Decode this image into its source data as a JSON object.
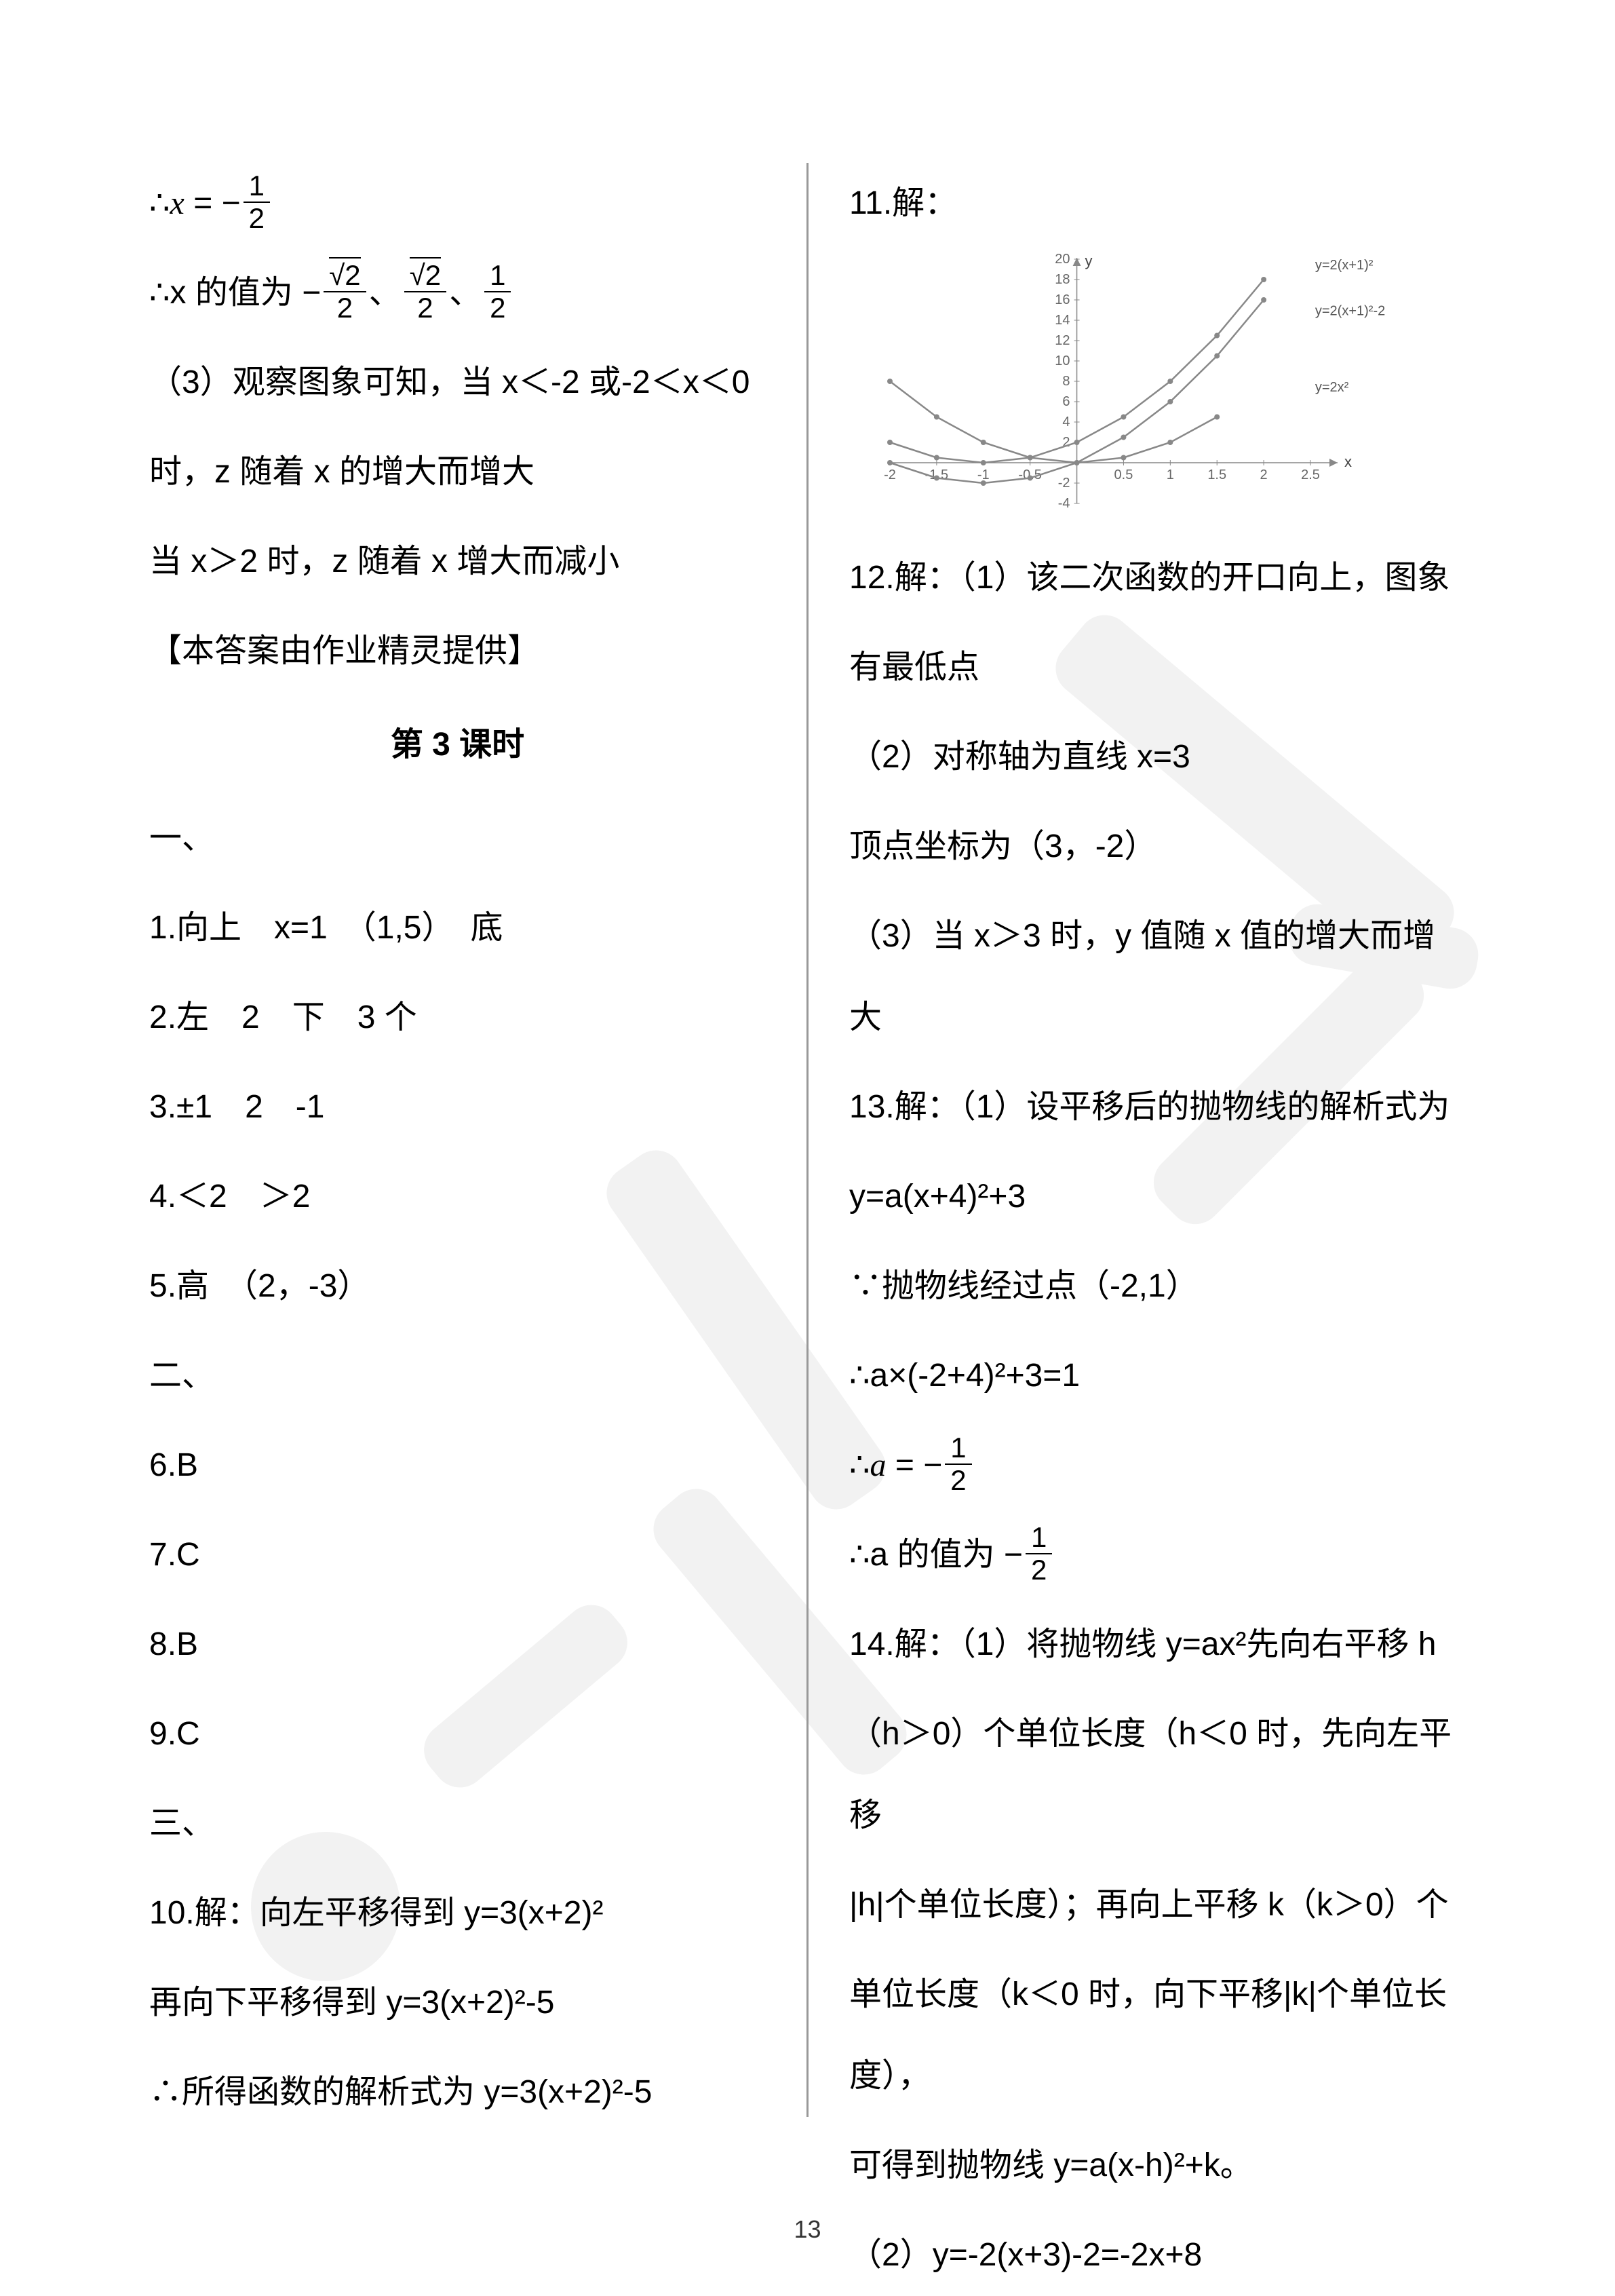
{
  "page_number": "13",
  "left": {
    "l1_pre": "∴",
    "l1_var": "x",
    "l1_eq": " = −",
    "l1_frac_n": "1",
    "l1_frac_d": "2",
    "l2_pre": "∴x 的值为 −",
    "l2_f1n": "√2",
    "l2_f1d": "2",
    "l2_sep1": "、",
    "l2_f2n": "√2",
    "l2_f2d": "2",
    "l2_sep2": "、",
    "l2_f3n": "1",
    "l2_f3d": "2",
    "l3": "（3）观察图象可知，当 x＜-2 或-2＜x＜0",
    "l4": "时，z 随着 x 的增大而增大",
    "l5": "当 x＞2 时，z 随着 x 增大而减小",
    "l6": "【本答案由作业精灵提供】",
    "h1": "第 3 课时",
    "s1": "一、",
    "a1": "1.向上　x=1　（1,5）　底",
    "a2": "2.左　2　下　3 个",
    "a3": "3.±1　2　-1",
    "a4": "4.＜2　＞2",
    "a5": "5.高　（2，-3）",
    "s2": "二、",
    "a6": "6.B",
    "a7": "7.C",
    "a8": "8.B",
    "a9": "9.C",
    "s3": "三、",
    "a10": "10.解：向左平移得到 y=3(x+2)²",
    "a10b": "再向下平移得到 y=3(x+2)²-5",
    "a10c": "∴所得函数的解析式为 y=3(x+2)²-5"
  },
  "right": {
    "r1": "11.解：",
    "chart": {
      "x_min": -2,
      "x_max": 2.5,
      "x_step": 0.5,
      "y_min": -4,
      "y_max": 20,
      "y_step": 2,
      "axis_color": "#888888",
      "grid_color": "#ffffff",
      "label_fontsize": 20,
      "curves": [
        {
          "label": "y=2(x+1)²",
          "label_x": 2.55,
          "label_y": 19,
          "color": "#888888",
          "width": 2.5,
          "marker": true,
          "points": [
            [
              -2,
              2
            ],
            [
              -1.5,
              0.5
            ],
            [
              -1,
              0
            ],
            [
              -0.5,
              0.5
            ],
            [
              0,
              2
            ],
            [
              0.5,
              4.5
            ],
            [
              1,
              8
            ],
            [
              1.5,
              12.5
            ],
            [
              2,
              18
            ]
          ]
        },
        {
          "label": "y=2(x+1)²-2",
          "label_x": 2.55,
          "label_y": 14.5,
          "color": "#888888",
          "width": 2.5,
          "marker": true,
          "points": [
            [
              -2,
              0
            ],
            [
              -1.5,
              -1.5
            ],
            [
              -1,
              -2
            ],
            [
              -0.5,
              -1.5
            ],
            [
              0,
              0
            ],
            [
              0.5,
              2.5
            ],
            [
              1,
              6
            ],
            [
              1.5,
              10.5
            ],
            [
              2,
              16
            ]
          ]
        },
        {
          "label": "y=2x²",
          "label_x": 2.55,
          "label_y": 7,
          "color": "#888888",
          "width": 2.5,
          "marker": true,
          "points": [
            [
              -2,
              8
            ],
            [
              -1.5,
              4.5
            ],
            [
              -1,
              2
            ],
            [
              -0.5,
              0.5
            ],
            [
              0,
              0
            ],
            [
              0.5,
              0.5
            ],
            [
              1,
              2
            ],
            [
              1.5,
              4.5
            ]
          ]
        }
      ],
      "x_label": "x",
      "y_label": "y"
    },
    "r2": "12.解：（1）该二次函数的开口向上，图象",
    "r3": "有最低点",
    "r4": "（2）对称轴为直线 x=3",
    "r5": "顶点坐标为（3，-2）",
    "r6": "（3）当 x＞3 时，y 值随 x 值的增大而增大",
    "r7": "13.解：（1）设平移后的抛物线的解析式为",
    "r8": "y=a(x+4)²+3",
    "r9": "∵抛物线经过点（-2,1）",
    "r10": "∴a×(-2+4)²+3=1",
    "r11_pre": "∴",
    "r11_var": "a",
    "r11_eq": " = −",
    "r11_fn": "1",
    "r11_fd": "2",
    "r12_pre": "∴a 的值为 −",
    "r12_fn": "1",
    "r12_fd": "2",
    "r13": "14.解：（1）将抛物线 y=ax²先向右平移 h",
    "r14": "（h＞0）个单位长度（h＜0 时，先向左平移",
    "r15": "|h|个单位长度）；再向上平移 k（k＞0）个",
    "r16": "单位长度（k＜0 时，向下平移|k|个单位长度），",
    "r17": "可得到抛物线 y=a(x-h)²+k。",
    "r18": "（2）y=-2(x+3)-2=-2x+8"
  }
}
